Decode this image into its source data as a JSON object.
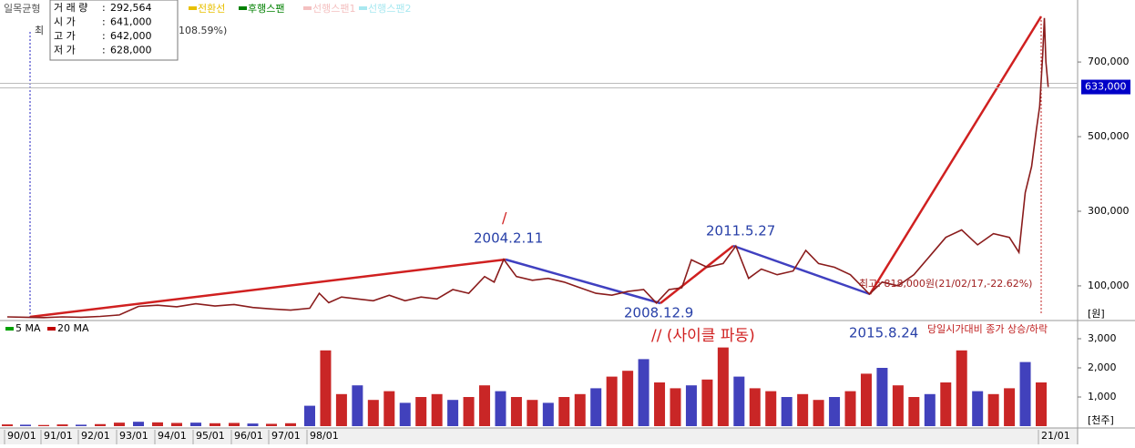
{
  "header": {
    "indicator": "일목균형",
    "legend": [
      {
        "name": "전환선",
        "color": "#e8c000"
      },
      {
        "name": "후행스팬",
        "color": "#008000"
      },
      {
        "name": "선행스팬1",
        "color": "#f4c0c0"
      },
      {
        "name": "선행스팬2",
        "color": "#a8e8f0"
      }
    ],
    "low_marker": "최",
    "low_pct": "108.59%)"
  },
  "info": {
    "rows": [
      {
        "label": "거 래 량",
        "value": "292,564"
      },
      {
        "label": "시       가",
        "value": "641,000"
      },
      {
        "label": "고       가",
        "value": "642,000"
      },
      {
        "label": "저       가",
        "value": "628,000"
      }
    ]
  },
  "chart_data": [
    {
      "type": "line",
      "color": "#8a1c1c",
      "x": [
        1990.0,
        1990.5,
        1991.0,
        1991.5,
        1992.0,
        1992.5,
        1993.0,
        1993.5,
        1994.0,
        1994.5,
        1995.0,
        1995.5,
        1996.0,
        1996.5,
        1997.0,
        1997.5,
        1998.0,
        1998.3,
        1998.6,
        1999.0,
        1999.5,
        2000.0,
        2000.5,
        2001.0,
        2001.5,
        2002.0,
        2002.5,
        2003.0,
        2003.5,
        2003.8,
        2004.1,
        2004.5,
        2005.0,
        2005.5,
        2006.0,
        2006.5,
        2007.0,
        2007.5,
        2008.0,
        2008.5,
        2008.9,
        2009.3,
        2009.7,
        2010.0,
        2010.5,
        2011.0,
        2011.4,
        2011.8,
        2012.2,
        2012.7,
        2013.2,
        2013.6,
        2014.0,
        2014.5,
        2015.0,
        2015.6,
        2016.0,
        2016.5,
        2017.0,
        2017.5,
        2018.0,
        2018.5,
        2019.0,
        2019.5,
        2020.0,
        2020.3,
        2020.5,
        2020.7,
        2020.85,
        2020.95,
        2021.05,
        2021.1,
        2021.15,
        2021.22
      ],
      "values": [
        17000,
        16000,
        15000,
        17000,
        16000,
        18000,
        22000,
        45000,
        48000,
        44000,
        52000,
        46000,
        50000,
        42000,
        38000,
        35000,
        40000,
        80000,
        55000,
        70000,
        65000,
        60000,
        75000,
        60000,
        70000,
        65000,
        90000,
        80000,
        125000,
        110000,
        171000,
        125000,
        115000,
        120000,
        110000,
        95000,
        80000,
        75000,
        85000,
        90000,
        54000,
        90000,
        95000,
        170000,
        150000,
        160000,
        207000,
        120000,
        145000,
        130000,
        140000,
        195000,
        160000,
        150000,
        130000,
        78000,
        110000,
        100000,
        130000,
        180000,
        230000,
        250000,
        210000,
        240000,
        230000,
        190000,
        350000,
        420000,
        520000,
        580000,
        720000,
        818000,
        700000,
        633000
      ],
      "ylim": [
        12000,
        854000
      ],
      "yticks": [
        {
          "value": 100000,
          "label": "100,000"
        },
        {
          "value": 300000,
          "label": "300,000"
        },
        {
          "value": 500000,
          "label": "500,000"
        },
        {
          "value": 700000,
          "label": "700,000"
        }
      ],
      "y_unit": "[원]",
      "current_value": 633000,
      "current_label": "633,000",
      "annotations": [
        "/",
        "2004.2.11",
        "2008.12.9",
        "2011.5.27",
        "2015.8.24",
        "// (사이클 파동)",
        "최고: 818,000원(21/02/17,-22.62%)"
      ]
    },
    {
      "type": "bar",
      "color": "#c00000",
      "x": [
        1990.0,
        1990.5,
        1991.0,
        1991.5,
        1992.0,
        1992.5,
        1993.0,
        1993.5,
        1994.0,
        1994.5,
        1995.0,
        1995.5,
        1996.0,
        1996.5,
        1997.0,
        1997.5,
        1998.0,
        1998.5,
        1999.0,
        1999.5,
        2000.0,
        2000.5,
        2001.0,
        2001.5,
        2002.0,
        2002.5,
        2003.0,
        2003.5,
        2004.0,
        2004.5,
        2005.0,
        2005.5,
        2006.0,
        2006.5,
        2007.0,
        2007.5,
        2008.0,
        2008.5,
        2009.0,
        2009.5,
        2010.0,
        2010.5,
        2011.0,
        2011.5,
        2012.0,
        2012.5,
        2013.0,
        2013.5,
        2014.0,
        2014.5,
        2015.0,
        2015.5,
        2016.0,
        2016.5,
        2017.0,
        2017.5,
        2018.0,
        2018.5,
        2019.0,
        2019.5,
        2020.0,
        2020.5,
        2021.0
      ],
      "values": [
        60,
        50,
        40,
        60,
        50,
        70,
        120,
        150,
        130,
        110,
        120,
        100,
        110,
        90,
        80,
        100,
        700,
        2600,
        1100,
        1400,
        900,
        1200,
        800,
        1000,
        1100,
        900,
        1000,
        1400,
        1200,
        1000,
        900,
        800,
        1000,
        1100,
        1300,
        1700,
        1900,
        2300,
        1500,
        1300,
        1400,
        1600,
        2700,
        1700,
        1300,
        1200,
        1000,
        1100,
        900,
        1000,
        1200,
        1800,
        2000,
        1400,
        1000,
        1100,
        1500,
        2600,
        1200,
        1100,
        1300,
        2200,
        1500
      ],
      "ylim": [
        0,
        3500
      ],
      "yticks": [
        {
          "value": 1000,
          "label": "1,000"
        },
        {
          "value": 2000,
          "label": "2,000"
        },
        {
          "value": 3000,
          "label": "3,000"
        }
      ],
      "y_unit": "[천주]",
      "legend": [
        {
          "name": "5 MA",
          "color": "#00a000"
        },
        {
          "name": "20 MA",
          "color": "#c00000"
        }
      ],
      "note": "당일시가대비 종가 상승/하락",
      "xlim": [
        1989.8,
        2022.15
      ],
      "xticks": [
        {
          "value": 1990,
          "label": "90/01"
        },
        {
          "value": 1991,
          "label": "91/01"
        },
        {
          "value": 1992,
          "label": "92/01"
        },
        {
          "value": 1993,
          "label": "93/01"
        },
        {
          "value": 1994,
          "label": "94/01"
        },
        {
          "value": 1995,
          "label": "95/01"
        },
        {
          "value": 1996,
          "label": "96/01"
        },
        {
          "value": 1997,
          "label": "97/01"
        },
        {
          "value": 1998,
          "label": "98/01"
        },
        {
          "value": 2021,
          "label": "21/01"
        }
      ]
    }
  ]
}
